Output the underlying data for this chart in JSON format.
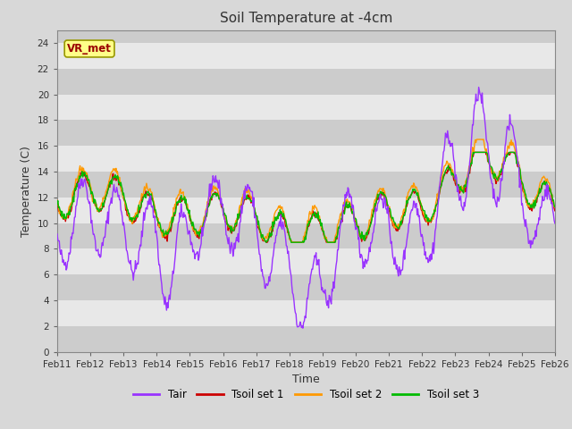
{
  "title": "Soil Temperature at -4cm",
  "xlabel": "Time",
  "ylabel": "Temperature (C)",
  "ylim": [
    0,
    25
  ],
  "yticks": [
    0,
    2,
    4,
    6,
    8,
    10,
    12,
    14,
    16,
    18,
    20,
    22,
    24
  ],
  "xtick_labels": [
    "Feb 11",
    "Feb 12",
    "Feb 13",
    "Feb 14",
    "Feb 15",
    "Feb 16",
    "Feb 17",
    "Feb 18",
    "Feb 19",
    "Feb 20",
    "Feb 21",
    "Feb 22",
    "Feb 23",
    "Feb 24",
    "Feb 25",
    "Feb 26"
  ],
  "colors": {
    "Tair": "#9933ff",
    "Tsoil1": "#cc0000",
    "Tsoil2": "#ff9900",
    "Tsoil3": "#00bb00"
  },
  "fig_bg": "#d8d8d8",
  "plot_bg_dark": "#cccccc",
  "plot_bg_light": "#e8e8e8",
  "watermark_text": "VR_met",
  "watermark_fg": "#990000",
  "watermark_bg": "#ffff88",
  "watermark_border": "#999900",
  "legend_labels": [
    "Tair",
    "Tsoil set 1",
    "Tsoil set 2",
    "Tsoil set 3"
  ],
  "figsize": [
    6.4,
    4.8
  ],
  "dpi": 100
}
